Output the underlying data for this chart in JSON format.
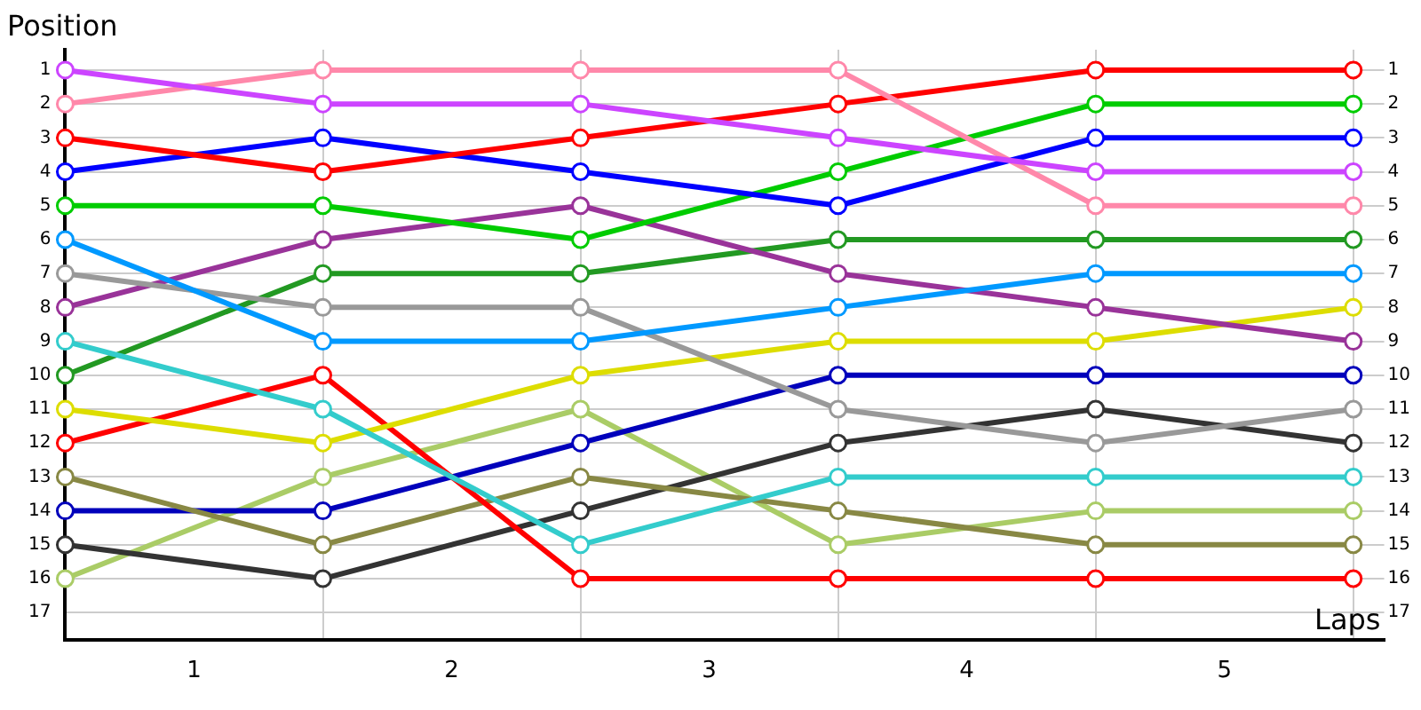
{
  "chart_data": {
    "type": "line",
    "ylabel": "Position",
    "xlabel": "Laps",
    "x": [
      0,
      1,
      2,
      3,
      4,
      5
    ],
    "xlim": [
      0,
      5.12
    ],
    "xticks": [
      {
        "value": 0,
        "label": null
      },
      {
        "value": 0.5,
        "label": "1"
      },
      {
        "value": 1,
        "label": null
      },
      {
        "value": 1.5,
        "label": "2"
      },
      {
        "value": 2,
        "label": null
      },
      {
        "value": 2.5,
        "label": "3"
      },
      {
        "value": 3,
        "label": null
      },
      {
        "value": 3.5,
        "label": "4"
      },
      {
        "value": 4,
        "label": null
      },
      {
        "value": 4.5,
        "label": "5"
      },
      {
        "value": 5,
        "label": null
      }
    ],
    "ylim": [
      17.8,
      0.4
    ],
    "yticks": [
      1,
      2,
      3,
      4,
      5,
      6,
      7,
      8,
      9,
      10,
      11,
      12,
      13,
      14,
      15,
      16,
      17
    ],
    "y2lim": [
      17.8,
      0.4
    ],
    "y2ticks": [
      1,
      2,
      3,
      4,
      5,
      6,
      7,
      8,
      9,
      10,
      11,
      12,
      13,
      14,
      15,
      16,
      17
    ],
    "grid": true,
    "legend": false,
    "marker": "circle",
    "line_style": "solid",
    "series": [
      {
        "color": "#cc44ff",
        "values": [
          1,
          2,
          2,
          3,
          4,
          4
        ]
      },
      {
        "color": "#ff88aa",
        "values": [
          2,
          1,
          1,
          1,
          5,
          5
        ]
      },
      {
        "color": "#ff0000",
        "values": [
          3,
          4,
          3,
          2,
          1,
          1
        ]
      },
      {
        "color": "#0000ff",
        "values": [
          4,
          3,
          4,
          5,
          3,
          3
        ]
      },
      {
        "color": "#00cc00",
        "values": [
          5,
          5,
          6,
          4,
          2,
          2
        ]
      },
      {
        "color": "#0099ff",
        "values": [
          6,
          9,
          9,
          8,
          7,
          7
        ]
      },
      {
        "color": "#999999",
        "values": [
          7,
          8,
          8,
          11,
          12,
          11
        ]
      },
      {
        "color": "#993399",
        "values": [
          8,
          6,
          5,
          7,
          8,
          9
        ]
      },
      {
        "color": "#33cccc",
        "values": [
          9,
          11,
          15,
          13,
          13,
          13
        ]
      },
      {
        "color": "#229922",
        "values": [
          10,
          7,
          7,
          6,
          6,
          6
        ]
      },
      {
        "color": "#dddd00",
        "values": [
          11,
          12,
          10,
          9,
          9,
          8
        ]
      },
      {
        "color": "#ff0000",
        "values": [
          12,
          10,
          16,
          16,
          16,
          16
        ]
      },
      {
        "color": "#888844",
        "values": [
          13,
          15,
          13,
          14,
          15,
          15
        ]
      },
      {
        "color": "#0000bb",
        "values": [
          14,
          14,
          12,
          10,
          10,
          10
        ]
      },
      {
        "color": "#333333",
        "values": [
          15,
          16,
          14,
          12,
          11,
          12
        ]
      },
      {
        "color": "#aacc66",
        "values": [
          16,
          13,
          11,
          15,
          14,
          14
        ]
      }
    ]
  }
}
